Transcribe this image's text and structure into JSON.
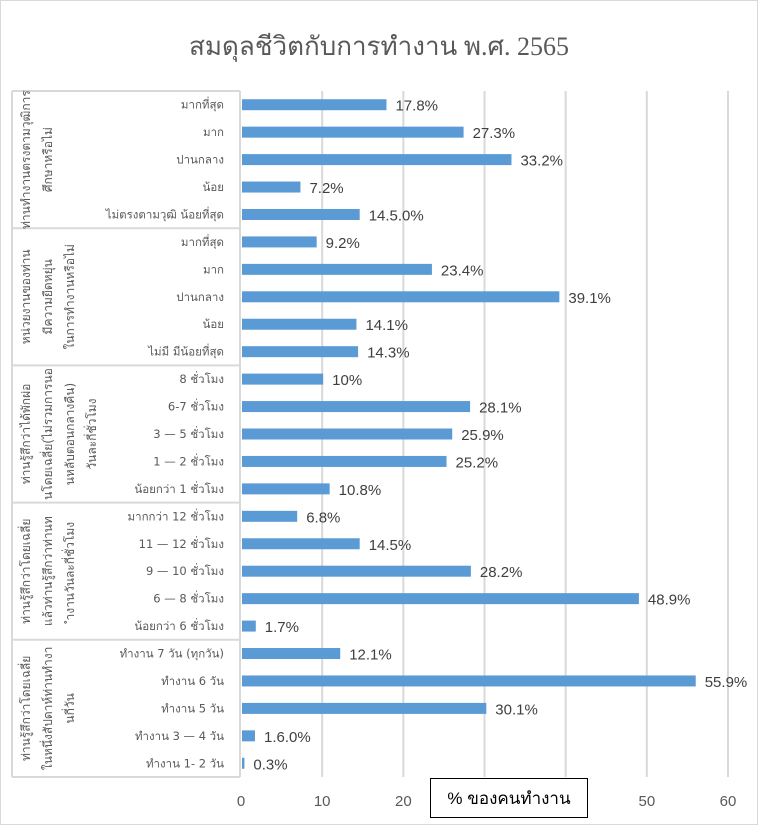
{
  "chart_data": {
    "type": "bar",
    "orientation": "horizontal",
    "title": "สมดุลชีวิตกับการทำงาน พ.ศ. 2565",
    "xlabel": "% ของคนทำงาน",
    "ylabel": "",
    "xlim": [
      0,
      60
    ],
    "xticks": [
      0,
      10,
      20,
      30,
      40,
      50,
      60
    ],
    "grid": true,
    "legend": "none",
    "bar_color": "#5b9bd5",
    "groups": [
      {
        "label": "ท่านทำงานตรงตามวุฒิการศึกษาหรือไม่",
        "categories": [
          "มากที่สุด",
          "มาก",
          "ปานกลาง",
          "น้อย",
          "ไม่ตรงตามวุฒิ น้อยที่สุด"
        ],
        "values": [
          17.8,
          27.3,
          33.2,
          7.2,
          14.5
        ],
        "data_labels": [
          "17.8%",
          "27.3%",
          "33.2%",
          "7.2%",
          "14.5.0%"
        ]
      },
      {
        "label": "หน่วยงานของท่าน มีความยืดหยุ่น ในการทำงานหรือไม่",
        "categories": [
          "มากที่สุด",
          "มาก",
          "ปานกลาง",
          "น้อย",
          "ไม่มี มีน้อยที่สุด"
        ],
        "values": [
          9.2,
          23.4,
          39.1,
          14.1,
          14.3
        ],
        "data_labels": [
          "9.2%",
          "23.4%",
          "39.1%",
          "14.1%",
          "14.3%"
        ]
      },
      {
        "label": "ท่านรู้สึกว่าได้พักผ่อนโดยเฉลี่ย(ไม่รวมการนอนหลับตอนกลางคืน) วันละกี่ชั่วโมง",
        "categories": [
          "8 ชั่วโมง",
          "6-7 ชั่วโมง",
          "3 — 5 ชั่วโมง",
          "1 — 2 ชั่วโมง",
          "น้อยกว่า 1 ชั่วโมง"
        ],
        "values": [
          10,
          28.1,
          25.9,
          25.2,
          10.8
        ],
        "data_labels": [
          "10%",
          "28.1%",
          "25.9%",
          "25.2%",
          "10.8%"
        ]
      },
      {
        "label": "ท่านรู้สึกว่าโดยเฉลี่ยแล้วท่านรู้สึกว่าท่านทำงานวันละกี่ชั่วโมง",
        "categories": [
          "มากกว่า 12  ชั่วโมง",
          "11 — 12 ชั่วโมง",
          "9 — 10 ชั่วโมง",
          "6 — 8 ชั่วโมง",
          "น้อยกว่า 6 ชั่วโมง"
        ],
        "values": [
          6.8,
          14.5,
          28.2,
          48.9,
          1.7
        ],
        "data_labels": [
          "6.8%",
          "14.5%",
          "28.2%",
          "48.9%",
          "1.7%"
        ]
      },
      {
        "label": "ท่านรู้สึกว่าโดยเฉลี่ยในหนึ่งสัปดาห์ท่านทำงานกี่วัน",
        "categories": [
          "ทำงาน 7 วัน (ทุกวัน)",
          "ทำงาน 6 วัน",
          "ทำงาน 5 วัน",
          "ทำงาน 3 — 4 วัน",
          "ทำงาน 1- 2 วัน"
        ],
        "values": [
          12.1,
          55.9,
          30.1,
          1.6,
          0.3
        ],
        "data_labels": [
          "12.1%",
          "55.9%",
          "30.1%",
          "1.6.0%",
          "0.3%"
        ]
      }
    ]
  }
}
